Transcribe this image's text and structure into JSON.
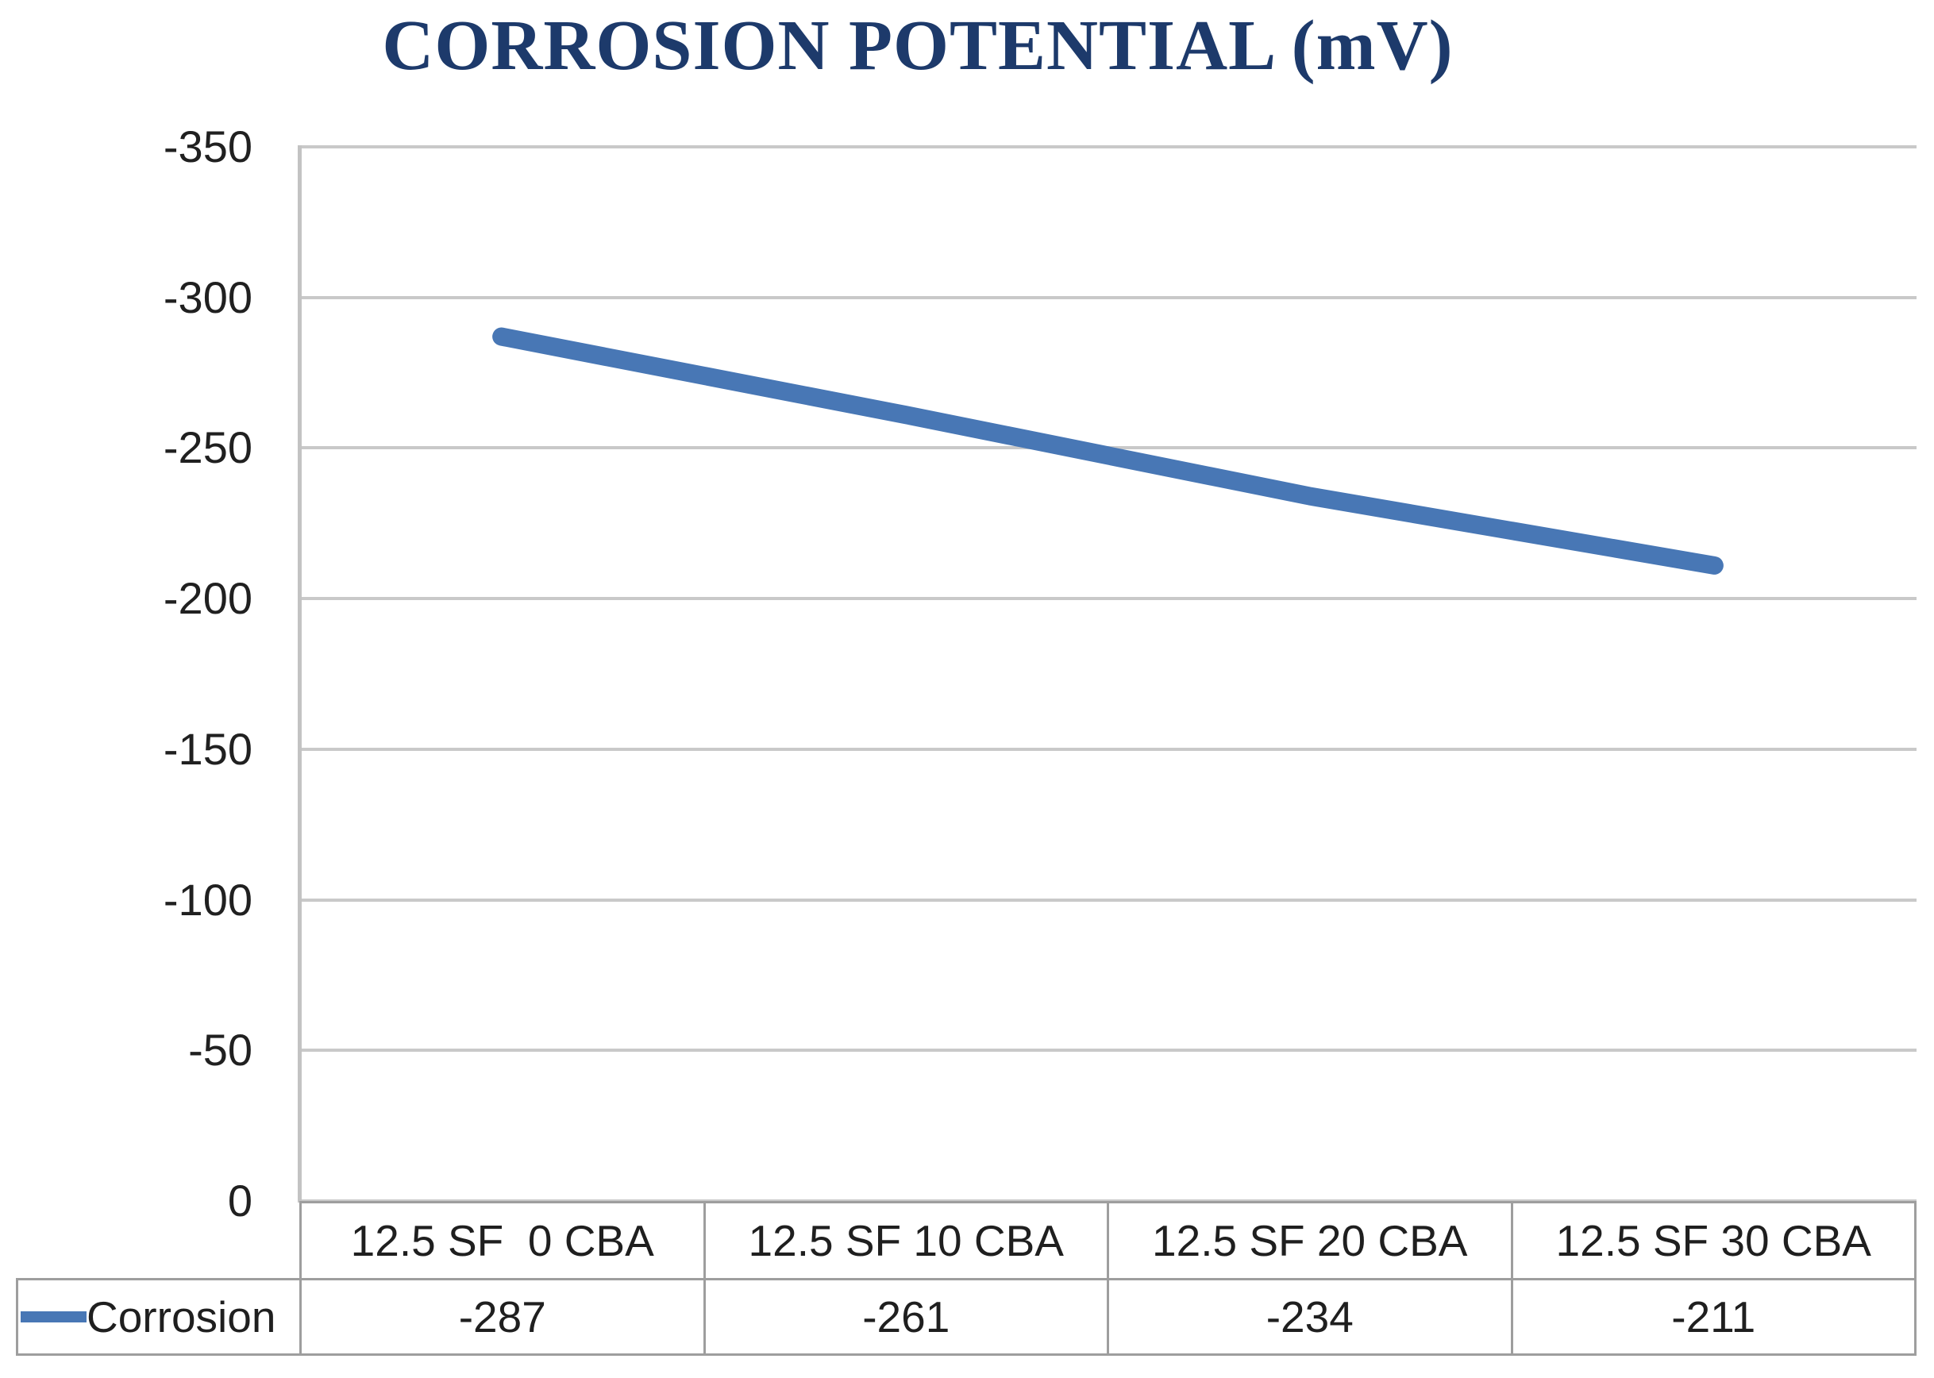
{
  "chart_data": {
    "type": "line",
    "title": "CORROSION POTENTIAL (mV)",
    "categories": [
      "12.5 SF  0 CBA",
      "12.5 SF 10 CBA",
      "12.5 SF 20 CBA",
      "12.5 SF 30 CBA"
    ],
    "series": [
      {
        "name": "Corrosion",
        "values": [
          -287,
          -261,
          -234,
          -211
        ]
      }
    ],
    "xlabel": "",
    "ylabel": "",
    "y_axis": {
      "min": -350,
      "max": 0,
      "tick_step": 50,
      "inverted_top_to_bottom": true,
      "tick_labels": [
        "-350",
        "-300",
        "-250",
        "-200",
        "-150",
        "-100",
        "-50",
        "0"
      ]
    },
    "grid": "horizontal gridlines on",
    "legend_position": "bottom data table, left cell",
    "data_table_shown": true
  },
  "colors": {
    "title": "#1D3A6B",
    "series_line": "#4877B5",
    "gridline": "#C9C9C9",
    "axis_line": "#C3C3C3",
    "table_border": "#9E9E9E",
    "label_text": "#202020",
    "background": "#FFFFFF"
  }
}
